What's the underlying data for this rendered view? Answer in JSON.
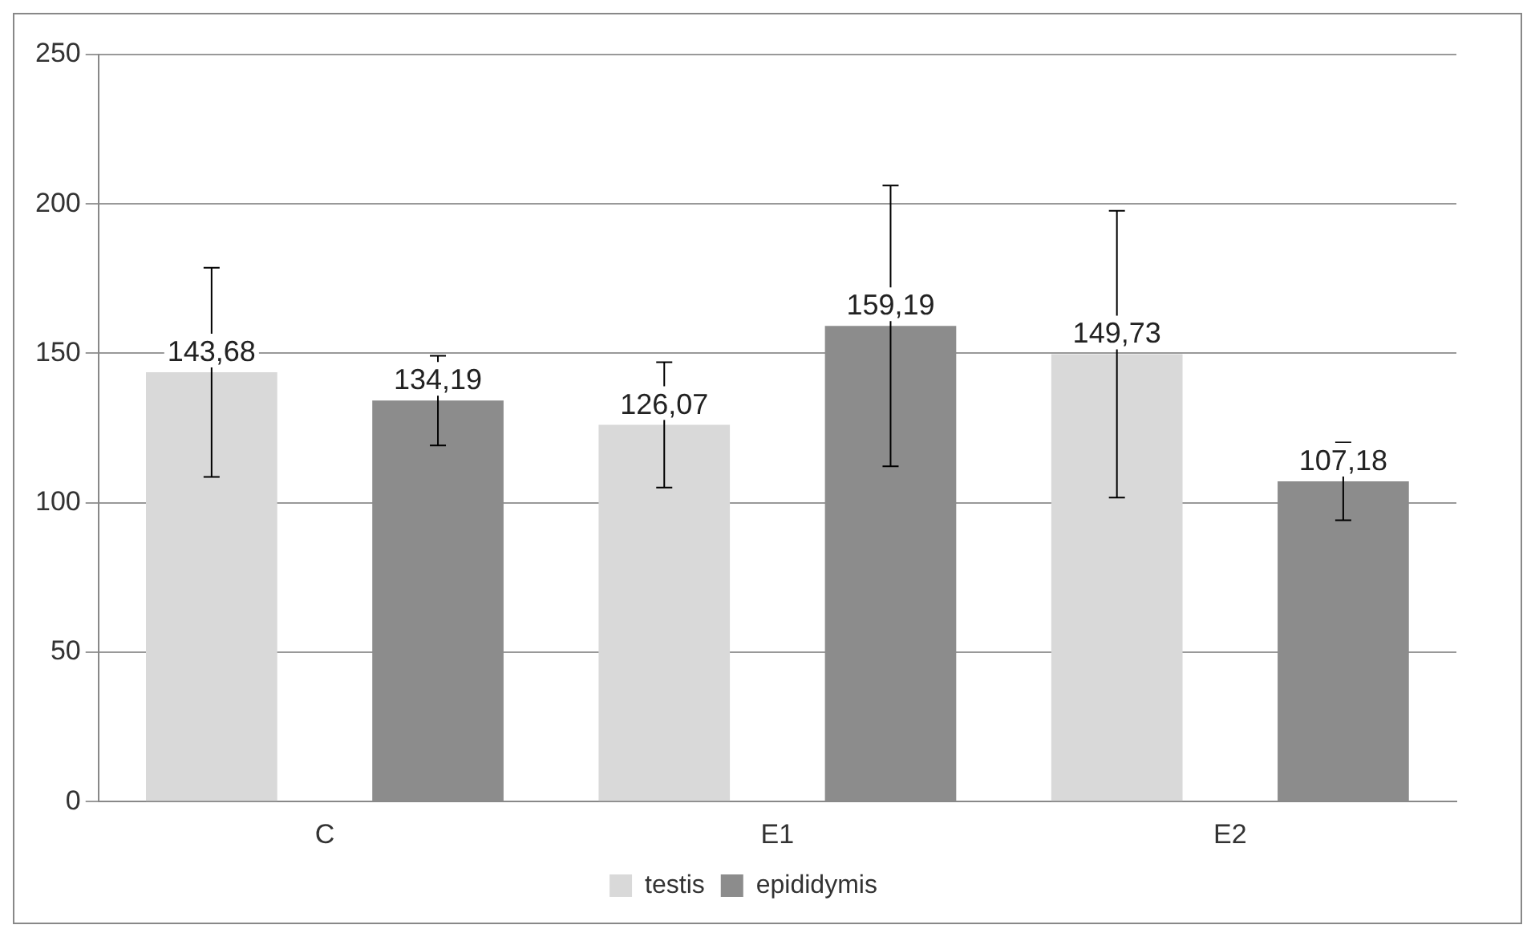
{
  "chart_data": {
    "type": "bar",
    "categories": [
      "C",
      "E1",
      "E2"
    ],
    "series": [
      {
        "name": "testis",
        "color": "#d9d9d9",
        "values": [
          143.68,
          126.07,
          149.73
        ],
        "errors": [
          35,
          21,
          48
        ],
        "value_labels": [
          "143,68",
          "126,07",
          "149,73"
        ]
      },
      {
        "name": "epididymis",
        "color": "#8c8c8c",
        "values": [
          134.19,
          159.19,
          107.18
        ],
        "errors": [
          15,
          47,
          13
        ],
        "value_labels": [
          "134,19",
          "159,19",
          "107,18"
        ]
      }
    ],
    "ylim": [
      0,
      250
    ],
    "yticks": [
      0,
      50,
      100,
      150,
      200,
      250
    ],
    "grid": "y",
    "legend": "bottom"
  }
}
